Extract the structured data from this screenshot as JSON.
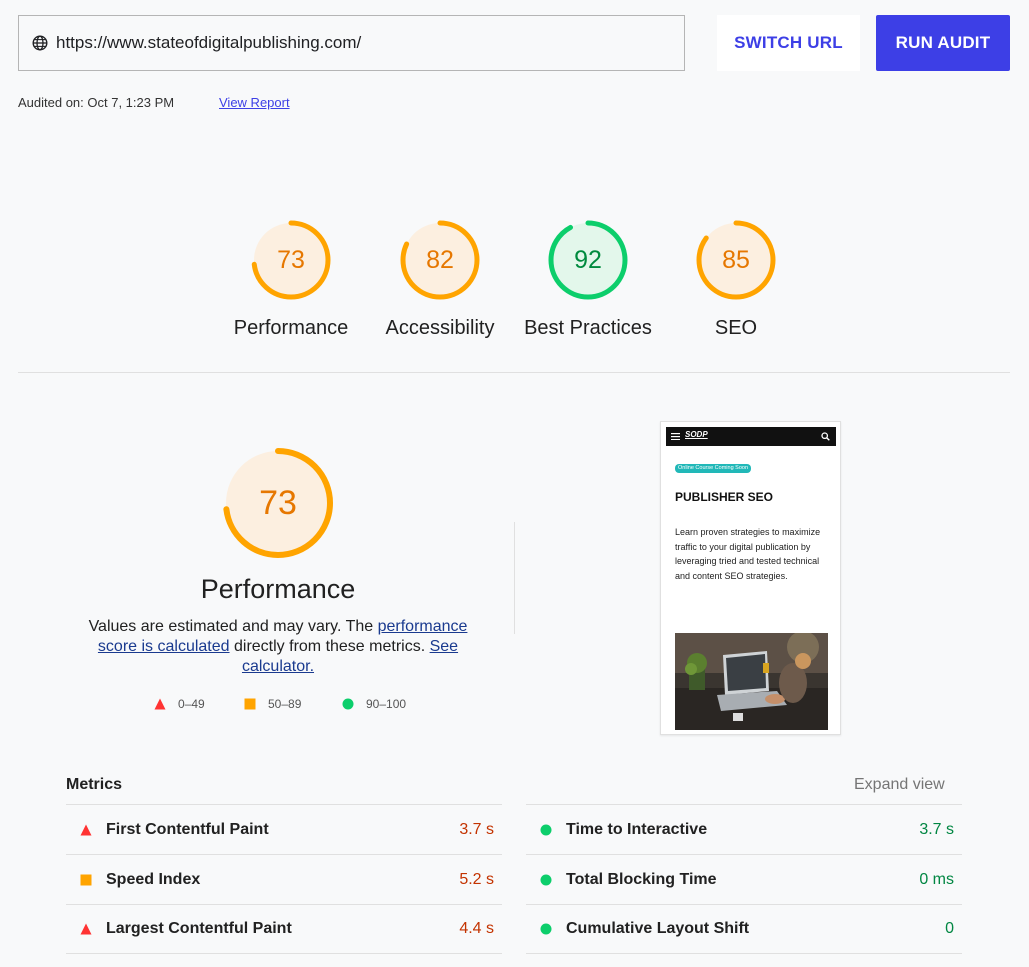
{
  "toolbar": {
    "url": "https://www.stateofdigitalpublishing.com/",
    "switch_label": "SWITCH URL",
    "run_label": "RUN AUDIT"
  },
  "audit": {
    "audited_on": "Audited on: Oct 7, 1:23 PM",
    "view_report": "View Report"
  },
  "gauges": [
    {
      "score": "73",
      "label": "Performance",
      "value": 73,
      "status": "average"
    },
    {
      "score": "82",
      "label": "Accessibility",
      "value": 82,
      "status": "average"
    },
    {
      "score": "92",
      "label": "Best Practices",
      "value": 92,
      "status": "pass"
    },
    {
      "score": "85",
      "label": "SEO",
      "value": 85,
      "status": "average"
    }
  ],
  "performance": {
    "score": "73",
    "value": 73,
    "title": "Performance",
    "desc_prefix": "Values are estimated and may vary. The ",
    "desc_link1": "performance score is calculated",
    "desc_middle": " directly from these metrics. ",
    "desc_link2": "See calculator.",
    "legend": {
      "fail": "0–49",
      "average": "50–89",
      "pass": "90–100"
    }
  },
  "preview": {
    "logo": "SODP",
    "badge": "Online Course Coming Soon",
    "title": "PUBLISHER SEO",
    "body": "Learn proven strategies to maximize traffic to your digital publication by leveraging tried and tested technical and content SEO strategies."
  },
  "metrics": {
    "title": "Metrics",
    "expand": "Expand view",
    "left": [
      {
        "name": "First Contentful Paint",
        "value": "3.7 s",
        "status": "fail"
      },
      {
        "name": "Speed Index",
        "value": "5.2 s",
        "status": "average"
      },
      {
        "name": "Largest Contentful Paint",
        "value": "4.4 s",
        "status": "fail"
      }
    ],
    "right": [
      {
        "name": "Time to Interactive",
        "value": "3.7 s",
        "status": "pass"
      },
      {
        "name": "Total Blocking Time",
        "value": "0 ms",
        "status": "pass"
      },
      {
        "name": "Cumulative Layout Shift",
        "value": "0",
        "status": "pass"
      }
    ]
  },
  "colors": {
    "accent": "#3d3fe6",
    "average": "#ffa400",
    "average_bg": "#fcefe0",
    "pass": "#0cce6b",
    "pass_bg": "#e3f7eb",
    "fail": "#ff3333",
    "average_text": "#e67700",
    "pass_text": "#008a3e"
  }
}
